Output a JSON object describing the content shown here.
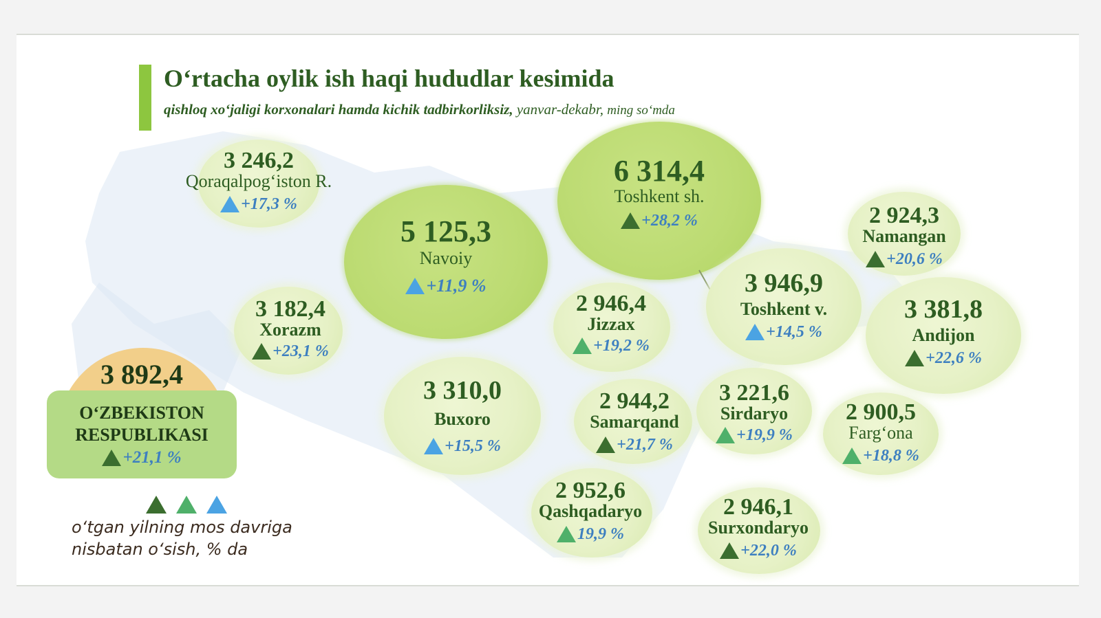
{
  "title": "O‘rtacha oylik ish haqi hududlar kesimida",
  "subtitle": {
    "main": "qishloq xo‘jaligi korxonalari hamda kichik tadbirkorliksiz,",
    "period": "yanvar-dekabr,",
    "unit": "ming so‘mda"
  },
  "colors": {
    "title_green": "#2e5d22",
    "accent_bar": "#8dc63f",
    "growth_blue": "#3d7fc0",
    "tri_dark_green": "#3b6e2f",
    "tri_green": "#4fb06a",
    "tri_blue": "#4ba3e3",
    "national_dome": "#f2cf8a",
    "national_box": "#b4da86"
  },
  "national": {
    "value": "3 892,4",
    "line1": "O‘ZBEKISTON",
    "line2": "RESPUBLIKASI",
    "growth": "+21,1 %",
    "triangle": "dark-green"
  },
  "regions": [
    {
      "id": "qoraqalpogiston",
      "name": "Qoraqalpog‘iston R.",
      "value": "3 246,2",
      "growth": "+17,3 %",
      "triangle": "blue"
    },
    {
      "id": "navoiy",
      "name": "Navoiy",
      "value": "5 125,3",
      "growth": "+11,9 %",
      "triangle": "blue"
    },
    {
      "id": "toshkent-sh",
      "name": "Toshkent sh.",
      "value": "6 314,4",
      "growth": "+28,2 %",
      "triangle": "dark-green"
    },
    {
      "id": "namangan",
      "name": "Namangan",
      "value": "2 924,3",
      "growth": "+20,6 %",
      "triangle": "dark-green"
    },
    {
      "id": "xorazm",
      "name": "Xorazm",
      "value": "3 182,4",
      "growth": "+23,1 %",
      "triangle": "dark-green"
    },
    {
      "id": "jizzax",
      "name": "Jizzax",
      "value": "2 946,4",
      "growth": "+19,2 %",
      "triangle": "green"
    },
    {
      "id": "toshkent-v",
      "name": "Toshkent v.",
      "value": "3 946,9",
      "growth": "+14,5 %",
      "triangle": "blue"
    },
    {
      "id": "andijon",
      "name": "Andijon",
      "value": "3 381,8",
      "growth": "+22,6 %",
      "triangle": "dark-green"
    },
    {
      "id": "buxoro",
      "name": "Buxoro",
      "value": "3 310,0",
      "growth": "+15,5 %",
      "triangle": "blue"
    },
    {
      "id": "samarqand",
      "name": "Samarqand",
      "value": "2 944,2",
      "growth": "+21,7 %",
      "triangle": "dark-green"
    },
    {
      "id": "sirdaryo",
      "name": "Sirdaryo",
      "value": "3 221,6",
      "growth": "+19,9 %",
      "triangle": "green"
    },
    {
      "id": "fargona",
      "name": "Farg‘ona",
      "value": "2 900,5",
      "growth": "+18,8 %",
      "triangle": "green"
    },
    {
      "id": "qashqadaryo",
      "name": "Qashqadaryo",
      "value": "2 952,6",
      "growth": "19,9 %",
      "triangle": "green"
    },
    {
      "id": "surxondaryo",
      "name": "Surxondaryo",
      "value": "2 946,1",
      "growth": "+22,0 %",
      "triangle": "dark-green"
    }
  ],
  "legend": {
    "line1": "o‘tgan yilning mos davriga",
    "line2": "nisbatan o‘sish, % da",
    "triangles": [
      "dark-green",
      "green",
      "blue"
    ]
  }
}
